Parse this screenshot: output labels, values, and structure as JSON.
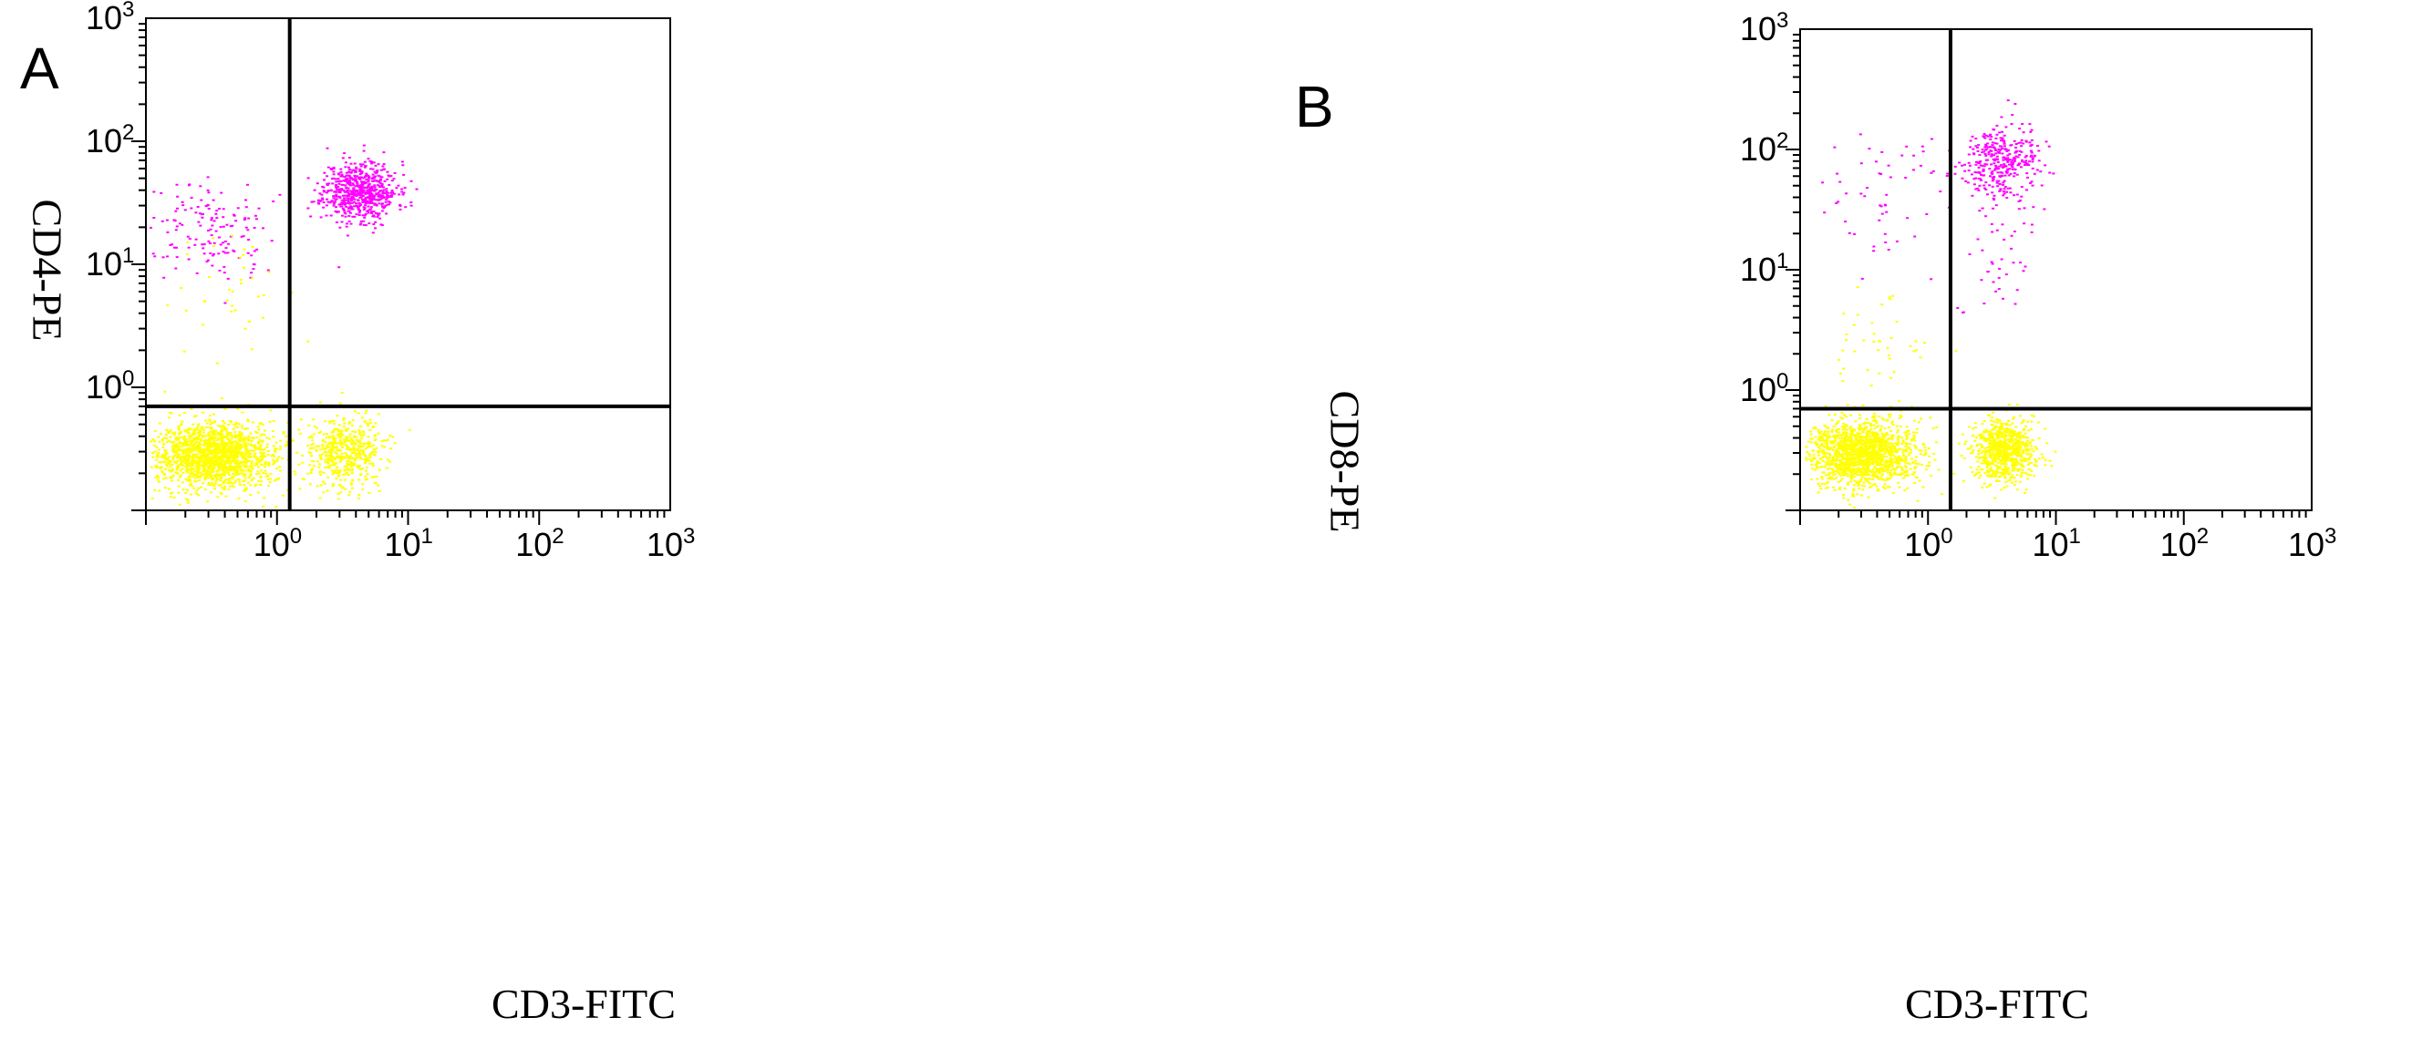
{
  "chart_data": [
    {
      "type": "scatter",
      "panel_label": "A",
      "xlabel": "CD3-FITC",
      "ylabel": "CD4-PE",
      "x_scale": "log",
      "y_scale": "log",
      "xlim": [
        0.1,
        1000
      ],
      "ylim": [
        0.1,
        1000
      ],
      "x_tick_labels": [
        "10^0",
        "10^1",
        "10^2",
        "10^3"
      ],
      "y_tick_labels": [
        "10^0",
        "10^1",
        "10^2",
        "10^3"
      ],
      "quadrant_gate": {
        "x": 1.25,
        "y": 0.7
      },
      "colors": {
        "positive": "#ff00ff",
        "negative": "#ffff00"
      },
      "populations": [
        {
          "color": "positive",
          "x_center": 4.2,
          "y_center": 40,
          "x_spread": 0.14,
          "y_spread": 0.12,
          "count": 650
        },
        {
          "color": "positive",
          "x_center": 0.28,
          "y_center": 20,
          "x_spread": 0.22,
          "y_spread": 0.2,
          "count": 150
        },
        {
          "color": "negative",
          "x_center": 0.33,
          "y_center": 0.28,
          "x_spread": 0.24,
          "y_spread": 0.14,
          "count": 1600
        },
        {
          "color": "negative",
          "x_center": 3.3,
          "y_center": 0.3,
          "x_spread": 0.14,
          "y_spread": 0.14,
          "count": 500
        },
        {
          "color": "negative",
          "x_center": 0.4,
          "y_center": 5,
          "x_spread": 0.25,
          "y_spread": 0.3,
          "count": 40
        }
      ]
    },
    {
      "type": "scatter",
      "panel_label": "B",
      "xlabel": "CD3-FITC",
      "ylabel": "CD8-PE",
      "x_scale": "log",
      "y_scale": "log",
      "xlim": [
        0.1,
        1000
      ],
      "ylim": [
        0.1,
        1000
      ],
      "x_tick_labels": [
        "10^0",
        "10^1",
        "10^2",
        "10^3"
      ],
      "y_tick_labels": [
        "10^0",
        "10^1",
        "10^2",
        "10^3"
      ],
      "quadrant_gate": {
        "x": 1.5,
        "y": 0.7
      },
      "colors": {
        "positive": "#ff00ff",
        "negative": "#ffff00"
      },
      "populations": [
        {
          "color": "positive",
          "x_center": 3.5,
          "y_center": 80,
          "x_spread": 0.15,
          "y_spread": 0.15,
          "count": 350
        },
        {
          "color": "positive",
          "x_center": 0.5,
          "y_center": 40,
          "x_spread": 0.3,
          "y_spread": 0.3,
          "count": 60
        },
        {
          "color": "positive",
          "x_center": 3.5,
          "y_center": 15,
          "x_spread": 0.15,
          "y_spread": 0.3,
          "count": 40
        },
        {
          "color": "negative",
          "x_center": 0.3,
          "y_center": 0.3,
          "x_spread": 0.22,
          "y_spread": 0.14,
          "count": 1500
        },
        {
          "color": "negative",
          "x_center": 3.8,
          "y_center": 0.32,
          "x_spread": 0.12,
          "y_spread": 0.13,
          "count": 800
        },
        {
          "color": "negative",
          "x_center": 0.4,
          "y_center": 2.5,
          "x_spread": 0.25,
          "y_spread": 0.2,
          "count": 40
        }
      ]
    }
  ]
}
